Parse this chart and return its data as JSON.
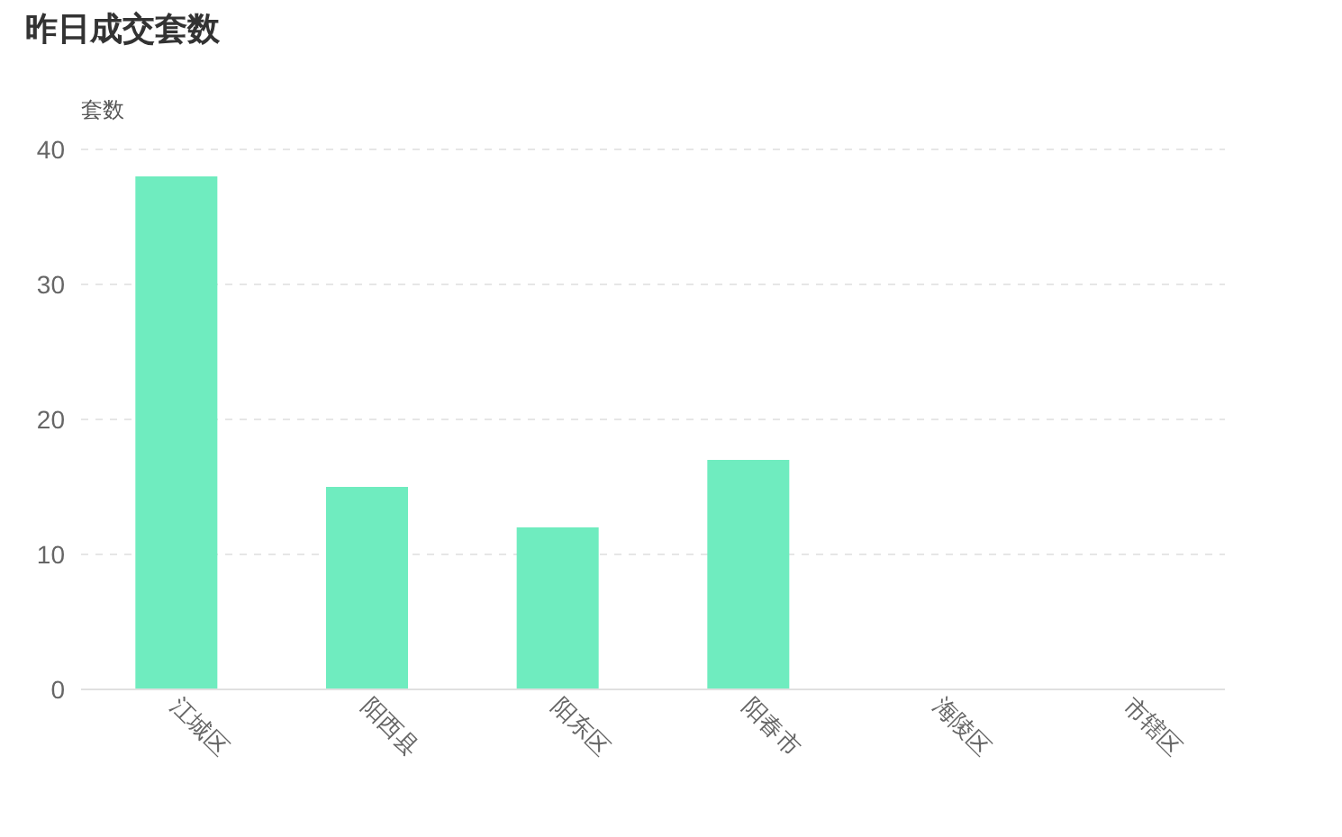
{
  "chart_data": {
    "type": "bar",
    "title": "昨日成交套数",
    "ylabel": "套数",
    "categories": [
      "江城区",
      "阳西县",
      "阳东区",
      "阳春市",
      "海陵区",
      "市辖区"
    ],
    "values": [
      38,
      15,
      12,
      17,
      0,
      0
    ],
    "color": "#6fecbf",
    "ylim": [
      0,
      40
    ],
    "yticks": [
      0,
      10,
      20,
      30,
      40
    ],
    "grid": "y"
  }
}
